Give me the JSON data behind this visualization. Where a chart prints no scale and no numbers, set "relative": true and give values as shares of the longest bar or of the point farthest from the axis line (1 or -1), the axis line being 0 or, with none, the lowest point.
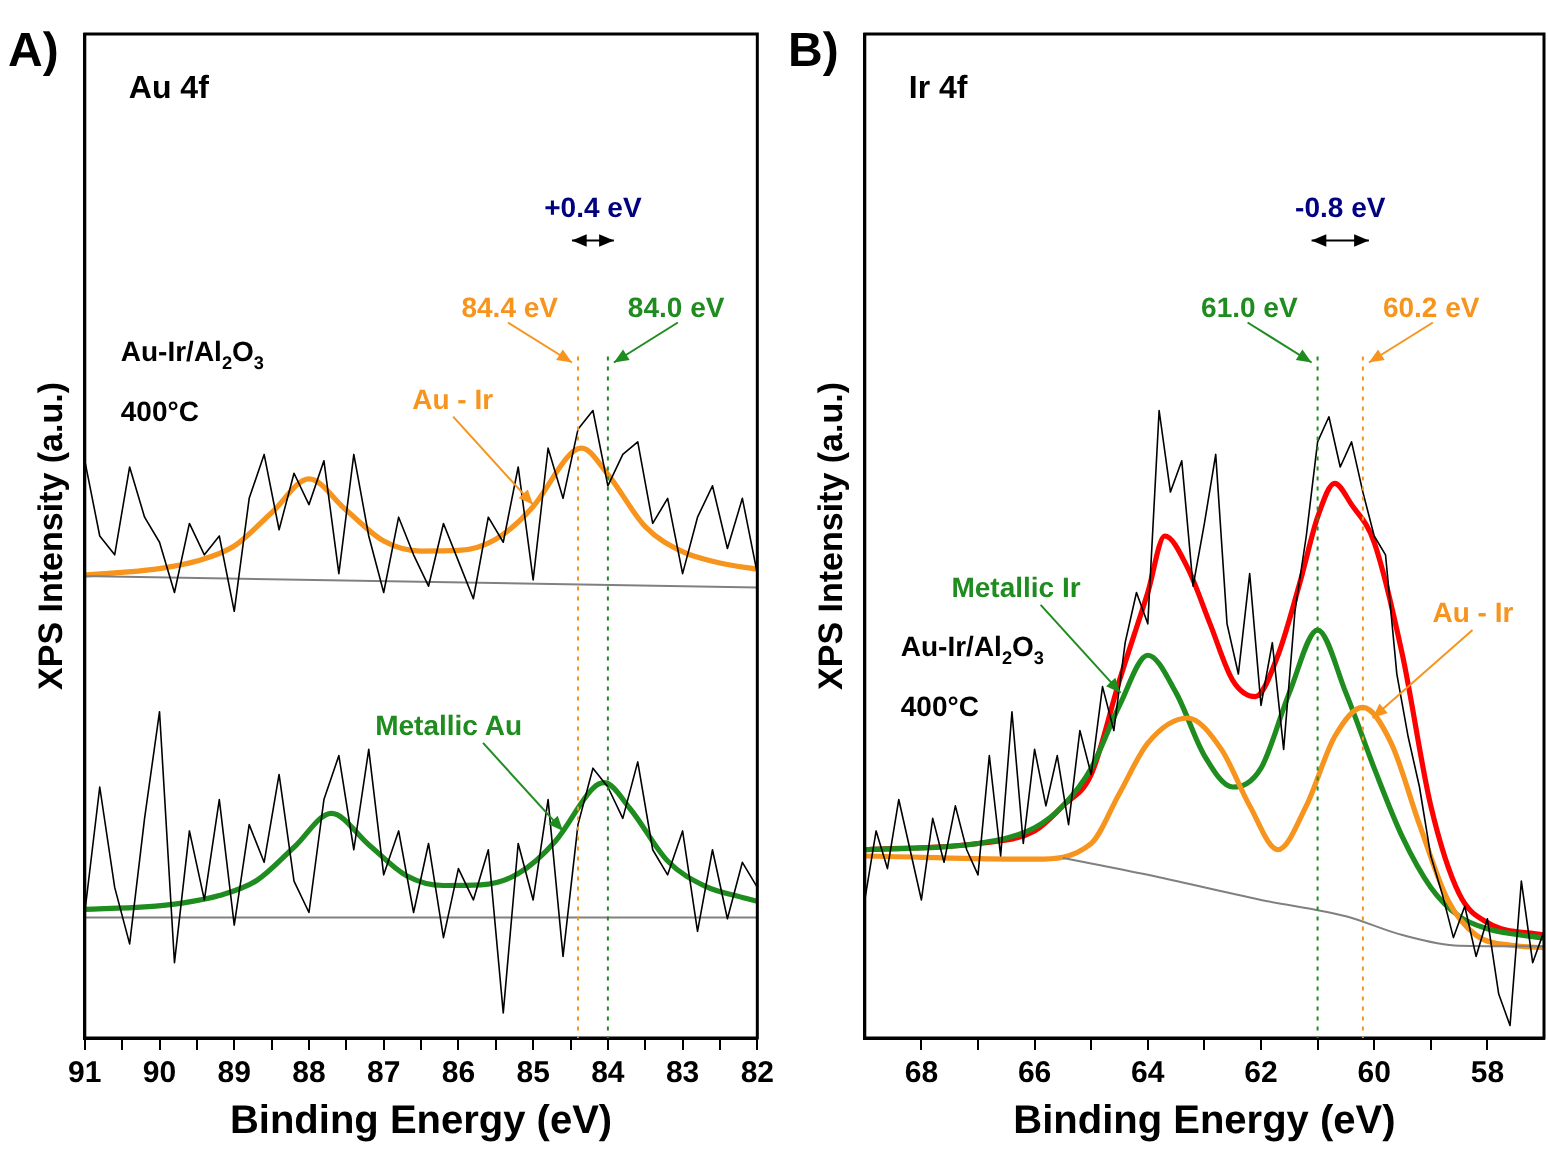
{
  "chart_data": [
    {
      "type": "line",
      "relative": true,
      "xlabel": "Binding Energy (eV)",
      "ylabel": "XPS Intensity (a.u.)",
      "xlim": [
        91,
        82
      ],
      "tick_labels": "x",
      "xticks": [
        91,
        {
          "value": 90.5,
          "label": null
        },
        90,
        {
          "value": 89.5,
          "label": null
        },
        89,
        {
          "value": 88.5,
          "label": null
        },
        88,
        {
          "value": 87.5,
          "label": null
        },
        87,
        {
          "value": 86.5,
          "label": null
        },
        86,
        {
          "value": 85.5,
          "label": null
        },
        85,
        {
          "value": 84.5,
          "label": null
        },
        84,
        {
          "value": 83.5,
          "label": null
        },
        83,
        {
          "value": 82.5,
          "label": null
        },
        82
      ],
      "series": [
        {
          "color": "#000000",
          "x": [
            91,
            90.8,
            90.6,
            90.4,
            90.2,
            90,
            89.8,
            89.6,
            89.4,
            89.2,
            89,
            88.8,
            88.6,
            88.4,
            88.2,
            88,
            87.8,
            87.6,
            87.4,
            87.2,
            87,
            86.8,
            86.6,
            86.4,
            86.2,
            86,
            85.8,
            85.6,
            85.4,
            85.2,
            85,
            84.8,
            84.6,
            84.4,
            84.2,
            84,
            83.8,
            83.6,
            83.4,
            83.2,
            83,
            82.8,
            82.6,
            82.4,
            82.2,
            82
          ],
          "values": [
            0.92,
            0.8,
            0.77,
            0.91,
            0.83,
            0.79,
            0.71,
            0.82,
            0.77,
            0.8,
            0.68,
            0.86,
            0.93,
            0.81,
            0.9,
            0.85,
            0.92,
            0.74,
            0.93,
            0.8,
            0.71,
            0.83,
            0.77,
            0.72,
            0.82,
            0.76,
            0.7,
            0.83,
            0.79,
            0.91,
            0.73,
            0.94,
            0.86,
            0.97,
            1.0,
            0.88,
            0.93,
            0.95,
            0.82,
            0.86,
            0.74,
            0.83,
            0.88,
            0.78,
            0.86,
            0.74
          ]
        },
        {
          "color": "#808080",
          "x": [
            91,
            82
          ],
          "values": [
            0.736,
            0.718
          ]
        },
        {
          "color": "#f7941d",
          "x": [
            91,
            90.5,
            90,
            89.5,
            89,
            88.5,
            88,
            87.5,
            87,
            86.5,
            86,
            85.5,
            85,
            84.5,
            84.35,
            84,
            83.5,
            83,
            82.5,
            82
          ],
          "values": [
            0.738,
            0.742,
            0.748,
            0.76,
            0.784,
            0.837,
            0.891,
            0.841,
            0.792,
            0.776,
            0.777,
            0.795,
            0.847,
            0.931,
            0.94,
            0.898,
            0.815,
            0.775,
            0.757,
            0.747
          ]
        },
        {
          "color": "#000000",
          "x": [
            91,
            90.8,
            90.6,
            90.4,
            90.2,
            90,
            89.8,
            89.6,
            89.4,
            89.2,
            89,
            88.8,
            88.6,
            88.4,
            88.2,
            88,
            87.8,
            87.6,
            87.4,
            87.2,
            87,
            86.8,
            86.6,
            86.4,
            86.2,
            86,
            85.8,
            85.6,
            85.4,
            85.2,
            85,
            84.8,
            84.6,
            84.4,
            84.2,
            84,
            83.8,
            83.6,
            83.4,
            83.2,
            83,
            82.8,
            82.6,
            82.4,
            82.2,
            82
          ],
          "values": [
            0.2,
            0.4,
            0.24,
            0.15,
            0.35,
            0.52,
            0.12,
            0.33,
            0.22,
            0.38,
            0.18,
            0.34,
            0.28,
            0.42,
            0.25,
            0.2,
            0.38,
            0.45,
            0.3,
            0.46,
            0.26,
            0.33,
            0.2,
            0.31,
            0.16,
            0.27,
            0.22,
            0.3,
            0.04,
            0.31,
            0.22,
            0.38,
            0.13,
            0.34,
            0.43,
            0.4,
            0.35,
            0.44,
            0.3,
            0.26,
            0.33,
            0.17,
            0.3,
            0.19,
            0.28,
            0.24
          ]
        },
        {
          "color": "#808080",
          "x": [
            91,
            82
          ],
          "values": [
            0.192,
            0.192
          ]
        },
        {
          "color": "#1e8c1e",
          "x": [
            91,
            90.2,
            89.7,
            89.2,
            88.7,
            88.2,
            87.7,
            87.2,
            86.7,
            86.2,
            85.7,
            85.2,
            84.7,
            84.2,
            84.05,
            83.7,
            83.2,
            82.7,
            82.2,
            82
          ],
          "values": [
            0.205,
            0.209,
            0.215,
            0.227,
            0.251,
            0.304,
            0.358,
            0.308,
            0.259,
            0.243,
            0.244,
            0.262,
            0.314,
            0.398,
            0.407,
            0.365,
            0.282,
            0.242,
            0.224,
            0.218
          ]
        }
      ],
      "ref_lines": [
        {
          "axis": "x",
          "value": 84.4,
          "label": "84.4 eV",
          "color": "#f7941d",
          "line_style": "dotted"
        },
        {
          "axis": "x",
          "value": 84.0,
          "label": "84.0 eV",
          "color": "#1e8c1e",
          "line_style": "dotted"
        }
      ],
      "annotations": [
        "A)",
        "Au 4f",
        "Au-Ir/Al$_{2}$O$_{3}$",
        "400°C",
        "+0.4 eV",
        {
          "text": "Au - Ir",
          "x": 85.0,
          "y": 0.85
        },
        {
          "text": "Metallic Au",
          "x": 84.6,
          "y": 0.33
        }
      ]
    },
    {
      "type": "line",
      "relative": true,
      "xlabel": "Binding Energy (eV)",
      "ylabel": "XPS Intensity (a.u.)",
      "xlim": [
        69,
        57
      ],
      "tick_labels": "x",
      "xticks": [
        68,
        {
          "value": 67,
          "label": null
        },
        66,
        {
          "value": 65,
          "label": null
        },
        64,
        {
          "value": 63,
          "label": null
        },
        62,
        {
          "value": 61,
          "label": null
        },
        60,
        {
          "value": 59,
          "label": null
        },
        58
      ],
      "series": [
        {
          "color": "#000000",
          "x": [
            69,
            68.8,
            68.6,
            68.4,
            68.2,
            68,
            67.8,
            67.6,
            67.4,
            67.2,
            67,
            66.8,
            66.6,
            66.4,
            66.2,
            66,
            65.8,
            65.6,
            65.4,
            65.2,
            65,
            64.8,
            64.6,
            64.4,
            64.2,
            64,
            63.8,
            63.6,
            63.4,
            63.2,
            63,
            62.8,
            62.6,
            62.4,
            62.2,
            62,
            61.8,
            61.6,
            61.4,
            61.2,
            61,
            60.8,
            60.6,
            60.4,
            60.2,
            60,
            59.8,
            59.6,
            59.4,
            59.2,
            59,
            58.8,
            58.6,
            58.4,
            58.2,
            58,
            57.8,
            57.6,
            57.4,
            57.2,
            57
          ],
          "values": [
            0.22,
            0.33,
            0.27,
            0.38,
            0.3,
            0.22,
            0.35,
            0.28,
            0.37,
            0.3,
            0.26,
            0.45,
            0.29,
            0.52,
            0.31,
            0.46,
            0.37,
            0.45,
            0.34,
            0.49,
            0.42,
            0.56,
            0.49,
            0.63,
            0.71,
            0.66,
            1.0,
            0.87,
            0.92,
            0.72,
            0.82,
            0.93,
            0.66,
            0.58,
            0.74,
            0.53,
            0.63,
            0.46,
            0.68,
            0.8,
            0.95,
            0.99,
            0.91,
            0.95,
            0.87,
            0.8,
            0.77,
            0.58,
            0.48,
            0.4,
            0.29,
            0.23,
            0.16,
            0.21,
            0.13,
            0.19,
            0.07,
            0.02,
            0.25,
            0.12,
            0.17
          ]
        },
        {
          "color": "#808080",
          "x": [
            65.5,
            64,
            62,
            60.5,
            59.5,
            58.5,
            57
          ],
          "values": [
            0.287,
            0.26,
            0.22,
            0.194,
            0.164,
            0.147,
            0.146
          ]
        },
        {
          "color": "#f7941d",
          "x": [
            69,
            66,
            65,
            64.5,
            64,
            63.3,
            62.7,
            62.2,
            61.7,
            61.2,
            60.7,
            60.2,
            59.7,
            59.2,
            58.7,
            58.2,
            57.5,
            57
          ],
          "values": [
            0.29,
            0.285,
            0.31,
            0.39,
            0.47,
            0.51,
            0.46,
            0.37,
            0.3,
            0.37,
            0.48,
            0.527,
            0.47,
            0.34,
            0.22,
            0.164,
            0.147,
            0.144
          ]
        },
        {
          "color": "#1e8c1e",
          "x": [
            69,
            67,
            66,
            65.5,
            65,
            64.5,
            64,
            63.5,
            63,
            62.5,
            62,
            61.5,
            61,
            60.5,
            60,
            59.5,
            59,
            58.5,
            58,
            57
          ],
          "values": [
            0.3,
            0.31,
            0.335,
            0.37,
            0.43,
            0.53,
            0.61,
            0.55,
            0.45,
            0.4,
            0.43,
            0.55,
            0.65,
            0.55,
            0.43,
            0.32,
            0.24,
            0.194,
            0.174,
            0.159
          ]
        },
        {
          "color": "#ff0000",
          "x": [
            69,
            67,
            66,
            65.5,
            65,
            64.5,
            64,
            63.7,
            63.3,
            62.9,
            62.5,
            62.1,
            61.7,
            61.3,
            61,
            60.7,
            60.4,
            60,
            59.5,
            59,
            58.5,
            58,
            57
          ],
          "values": [
            0.3,
            0.31,
            0.33,
            0.37,
            0.42,
            0.57,
            0.71,
            0.8,
            0.75,
            0.66,
            0.57,
            0.544,
            0.61,
            0.73,
            0.83,
            0.884,
            0.85,
            0.79,
            0.61,
            0.37,
            0.23,
            0.184,
            0.164
          ]
        }
      ],
      "ref_lines": [
        {
          "axis": "x",
          "value": 61.0,
          "label": "61.0 eV",
          "color": "#1e8c1e",
          "line_style": "dotted"
        },
        {
          "axis": "x",
          "value": 60.2,
          "label": "60.2 eV",
          "color": "#f7941d",
          "line_style": "dotted"
        }
      ],
      "annotations": [
        "B)",
        "Ir 4f",
        "Au-Ir/Al$_{2}$O$_{3}$",
        "400°C",
        "-0.8 eV",
        {
          "text": "Metallic Ir",
          "x": 64.48,
          "y": 0.55
        },
        {
          "text": "Au - Ir",
          "x": 60.03,
          "y": 0.51
        }
      ]
    }
  ]
}
